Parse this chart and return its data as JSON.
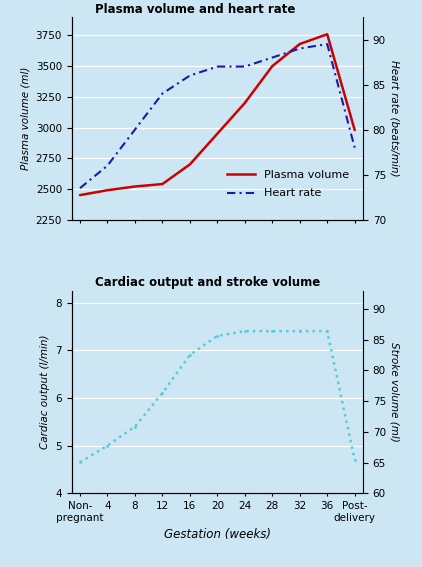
{
  "title1": "Plasma volume and heart rate",
  "title2": "Cardiac output and stroke volume",
  "xlabel": "Gestation (weeks)",
  "bg_color": "#cce6f4",
  "x_ticks_labels": [
    "Non-\npregnant",
    "4",
    "8",
    "12",
    "16",
    "20",
    "24",
    "28",
    "32",
    "36",
    "Post-\ndelivery"
  ],
  "x_positions": [
    0,
    1,
    2,
    3,
    4,
    5,
    6,
    7,
    8,
    9,
    10
  ],
  "plasma_volume_x": [
    0,
    1,
    2,
    3,
    4,
    5,
    6,
    7,
    8,
    9,
    10
  ],
  "plasma_volume_y": [
    2450,
    2490,
    2520,
    2540,
    2700,
    2950,
    3200,
    3500,
    3680,
    3760,
    2980
  ],
  "heart_rate_x": [
    0,
    1,
    2,
    3,
    4,
    5,
    6,
    7,
    8,
    9,
    10
  ],
  "heart_rate_y": [
    73.5,
    76,
    80,
    84,
    86,
    87,
    87,
    88,
    89,
    89.5,
    78
  ],
  "cardiac_output_x": [
    0,
    1,
    2,
    3,
    4,
    5,
    6,
    7,
    8,
    9,
    10
  ],
  "cardiac_output_y": [
    4.65,
    5.0,
    5.4,
    6.1,
    6.9,
    7.3,
    7.4,
    7.4,
    7.4,
    7.4,
    4.7
  ],
  "plasma_color": "#cc0000",
  "heart_color": "#1a1aaa",
  "cardiac_color": "#5bc8d8",
  "pv_ylim": [
    2250,
    3900
  ],
  "pv_yticks": [
    2250,
    2500,
    2750,
    3000,
    3250,
    3500,
    3750
  ],
  "hr_ylim": [
    70,
    92.5
  ],
  "hr_yticks": [
    70,
    75,
    80,
    85,
    90
  ],
  "co_ylim": [
    4,
    8.25
  ],
  "co_yticks": [
    4,
    5,
    6,
    7,
    8
  ],
  "sv_ylim": [
    60,
    93
  ],
  "sv_yticks": [
    60,
    65,
    70,
    75,
    80,
    85,
    90
  ]
}
